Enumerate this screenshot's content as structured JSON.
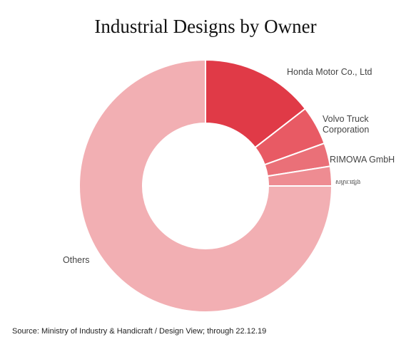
{
  "chart_data": {
    "type": "pie",
    "title": "Industrial Designs by Owner",
    "subtitle": "",
    "categories": [
      "Honda Motor Co., Ltd",
      "Volvo Truck Corporation",
      "RIMOWA GmbH",
      "សម្ភារៈផ្សេង",
      "Others"
    ],
    "values": [
      14.5,
      5.0,
      3.0,
      2.5,
      75.0
    ],
    "colors": [
      "#e03a47",
      "#e85a64",
      "#ea7078",
      "#ee8c92",
      "#f2afb3"
    ],
    "donut": true,
    "legend": "labels beside slices"
  },
  "source": "Source: Ministry of Industry & Handicraft / Design View; through 22.12.19"
}
